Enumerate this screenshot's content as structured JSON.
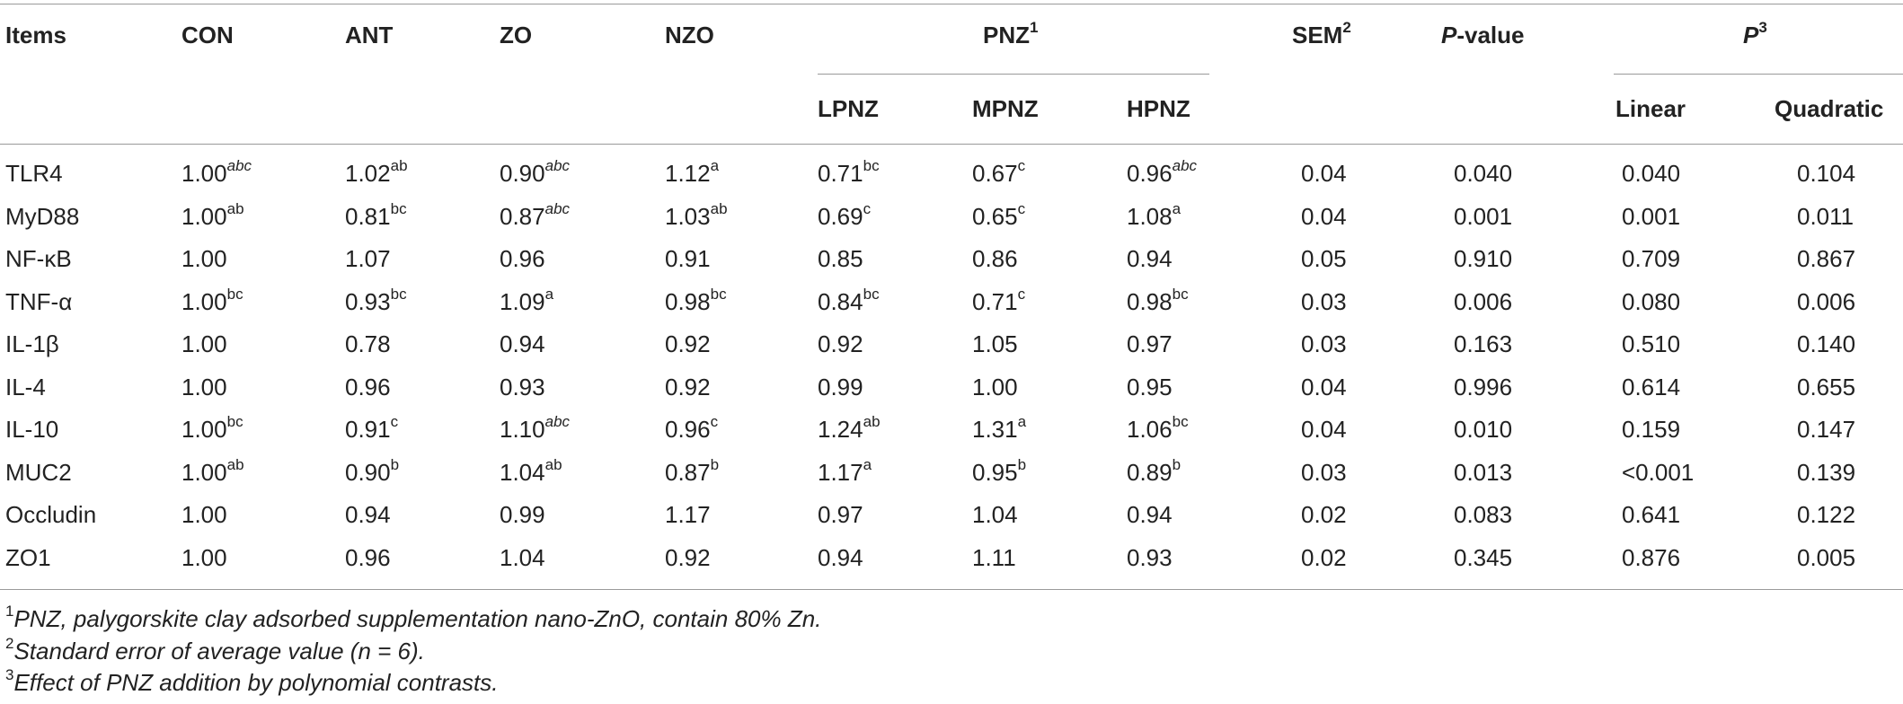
{
  "header": {
    "items": "Items",
    "con": "CON",
    "ant": "ANT",
    "zo": "ZO",
    "nzo": "NZO",
    "pnz": "PNZ",
    "pnz_sup": "1",
    "lpnz": "LPNZ",
    "mpnz": "MPNZ",
    "hpnz": "HPNZ",
    "sem": "SEM",
    "sem_sup": "2",
    "pvalue_p": "P",
    "pvalue_rest": "-value",
    "p3": "P",
    "p3_sup": "3",
    "linear": "Linear",
    "quadratic": "Quadratic"
  },
  "rows": [
    {
      "item": "TLR4",
      "cells": [
        [
          "1.00",
          "abc"
        ],
        [
          "1.02",
          "ab"
        ],
        [
          "0.90",
          "abc"
        ],
        [
          "1.12",
          "a"
        ],
        [
          "0.71",
          "bc"
        ],
        [
          "0.67",
          "c"
        ],
        [
          "0.96",
          "abc"
        ],
        [
          "0.04",
          ""
        ],
        [
          "0.040",
          ""
        ],
        [
          "0.040",
          ""
        ],
        [
          "0.104",
          ""
        ]
      ]
    },
    {
      "item": "MyD88",
      "cells": [
        [
          "1.00",
          "ab"
        ],
        [
          "0.81",
          "bc"
        ],
        [
          "0.87",
          "abc"
        ],
        [
          "1.03",
          "ab"
        ],
        [
          "0.69",
          "c"
        ],
        [
          "0.65",
          "c"
        ],
        [
          "1.08",
          "a"
        ],
        [
          "0.04",
          ""
        ],
        [
          "0.001",
          ""
        ],
        [
          "0.001",
          ""
        ],
        [
          "0.011",
          ""
        ]
      ]
    },
    {
      "item": "NF-κB",
      "cells": [
        [
          "1.00",
          ""
        ],
        [
          "1.07",
          ""
        ],
        [
          "0.96",
          ""
        ],
        [
          "0.91",
          ""
        ],
        [
          "0.85",
          ""
        ],
        [
          "0.86",
          ""
        ],
        [
          "0.94",
          ""
        ],
        [
          "0.05",
          ""
        ],
        [
          "0.910",
          ""
        ],
        [
          "0.709",
          ""
        ],
        [
          "0.867",
          ""
        ]
      ]
    },
    {
      "item": "TNF-α",
      "cells": [
        [
          "1.00",
          "bc"
        ],
        [
          "0.93",
          "bc"
        ],
        [
          "1.09",
          "a"
        ],
        [
          "0.98",
          "bc"
        ],
        [
          "0.84",
          "bc"
        ],
        [
          "0.71",
          "c"
        ],
        [
          "0.98",
          "bc"
        ],
        [
          "0.03",
          ""
        ],
        [
          "0.006",
          ""
        ],
        [
          "0.080",
          ""
        ],
        [
          "0.006",
          ""
        ]
      ]
    },
    {
      "item": "IL-1β",
      "cells": [
        [
          "1.00",
          ""
        ],
        [
          "0.78",
          ""
        ],
        [
          "0.94",
          ""
        ],
        [
          "0.92",
          ""
        ],
        [
          "0.92",
          ""
        ],
        [
          "1.05",
          ""
        ],
        [
          "0.97",
          ""
        ],
        [
          "0.03",
          ""
        ],
        [
          "0.163",
          ""
        ],
        [
          "0.510",
          ""
        ],
        [
          "0.140",
          ""
        ]
      ]
    },
    {
      "item": "IL-4",
      "cells": [
        [
          "1.00",
          ""
        ],
        [
          "0.96",
          ""
        ],
        [
          "0.93",
          ""
        ],
        [
          "0.92",
          ""
        ],
        [
          "0.99",
          ""
        ],
        [
          "1.00",
          ""
        ],
        [
          "0.95",
          ""
        ],
        [
          "0.04",
          ""
        ],
        [
          "0.996",
          ""
        ],
        [
          "0.614",
          ""
        ],
        [
          "0.655",
          ""
        ]
      ]
    },
    {
      "item": "IL-10",
      "cells": [
        [
          "1.00",
          "bc"
        ],
        [
          "0.91",
          "c"
        ],
        [
          "1.10",
          "abc"
        ],
        [
          "0.96",
          "c"
        ],
        [
          "1.24",
          "ab"
        ],
        [
          "1.31",
          "a"
        ],
        [
          "1.06",
          "bc"
        ],
        [
          "0.04",
          ""
        ],
        [
          "0.010",
          ""
        ],
        [
          "0.159",
          ""
        ],
        [
          "0.147",
          ""
        ]
      ]
    },
    {
      "item": "MUC2",
      "cells": [
        [
          "1.00",
          "ab"
        ],
        [
          "0.90",
          "b"
        ],
        [
          "1.04",
          "ab"
        ],
        [
          "0.87",
          "b"
        ],
        [
          "1.17",
          "a"
        ],
        [
          "0.95",
          "b"
        ],
        [
          "0.89",
          "b"
        ],
        [
          "0.03",
          ""
        ],
        [
          "0.013",
          ""
        ],
        [
          "<0.001",
          ""
        ],
        [
          "0.139",
          ""
        ]
      ]
    },
    {
      "item": "Occludin",
      "cells": [
        [
          "1.00",
          ""
        ],
        [
          "0.94",
          ""
        ],
        [
          "0.99",
          ""
        ],
        [
          "1.17",
          ""
        ],
        [
          "0.97",
          ""
        ],
        [
          "1.04",
          ""
        ],
        [
          "0.94",
          ""
        ],
        [
          "0.02",
          ""
        ],
        [
          "0.083",
          ""
        ],
        [
          "0.641",
          ""
        ],
        [
          "0.122",
          ""
        ]
      ]
    },
    {
      "item": "ZO1",
      "cells": [
        [
          "1.00",
          ""
        ],
        [
          "0.96",
          ""
        ],
        [
          "1.04",
          ""
        ],
        [
          "0.92",
          ""
        ],
        [
          "0.94",
          ""
        ],
        [
          "1.11",
          ""
        ],
        [
          "0.93",
          ""
        ],
        [
          "0.02",
          ""
        ],
        [
          "0.345",
          ""
        ],
        [
          "0.876",
          ""
        ],
        [
          "0.005",
          ""
        ]
      ]
    }
  ],
  "footnotes": [
    {
      "sup": "1",
      "text": "PNZ, palygorskite clay adsorbed supplementation nano-ZnO, contain 80% Zn."
    },
    {
      "sup": "2",
      "text": "Standard error of average value (n = 6)."
    },
    {
      "sup": "3",
      "text": "Effect of PNZ addition by polynomial contrasts."
    }
  ]
}
